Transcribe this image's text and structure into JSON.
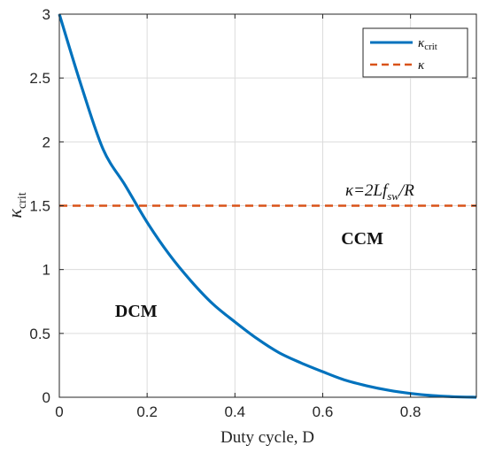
{
  "chart_data": {
    "type": "line",
    "xlabel": "Duty cycle, D",
    "ylabel": "κ",
    "ylabel_sub": "crit",
    "xlim": [
      0,
      0.95
    ],
    "ylim": [
      0,
      3
    ],
    "x_ticks": [
      0,
      0.2,
      0.4,
      0.6,
      0.8
    ],
    "x_tick_labels": [
      "0",
      "0.2",
      "0.4",
      "0.6",
      "0.8"
    ],
    "y_ticks": [
      0,
      0.5,
      1,
      1.5,
      2,
      2.5,
      3
    ],
    "y_tick_labels": [
      "0",
      "0.5",
      "1",
      "1.5",
      "2",
      "2.5",
      "3"
    ],
    "grid": true,
    "legend_position": "top-right",
    "series": [
      {
        "name": "κ",
        "name_sub": "crit",
        "style": "solid",
        "color": "#0072BD",
        "x": [
          0,
          0.05,
          0.1,
          0.15,
          0.2,
          0.25,
          0.3,
          0.35,
          0.4,
          0.45,
          0.5,
          0.55,
          0.6,
          0.65,
          0.7,
          0.75,
          0.8,
          0.85,
          0.9,
          0.95
        ],
        "y": [
          3.0,
          2.44,
          1.94,
          1.66,
          1.37,
          1.12,
          0.91,
          0.73,
          0.59,
          0.46,
          0.35,
          0.27,
          0.2,
          0.135,
          0.09,
          0.055,
          0.03,
          0.013,
          0.004,
          0.0
        ]
      },
      {
        "name": "κ",
        "style": "dashed",
        "color": "#D95319",
        "x": [
          0,
          0.95
        ],
        "y": [
          1.5,
          1.5
        ]
      }
    ],
    "annotations": [
      {
        "id": "kappa_eq",
        "text_pre": "κ=2Lf",
        "text_sub": "sw",
        "text_post": "/R",
        "x": 0.73,
        "y": 1.58
      },
      {
        "id": "ccm",
        "text": "CCM",
        "x": 0.69,
        "y": 1.2
      },
      {
        "id": "dcm",
        "text": "DCM",
        "x": 0.175,
        "y": 0.63
      }
    ]
  }
}
